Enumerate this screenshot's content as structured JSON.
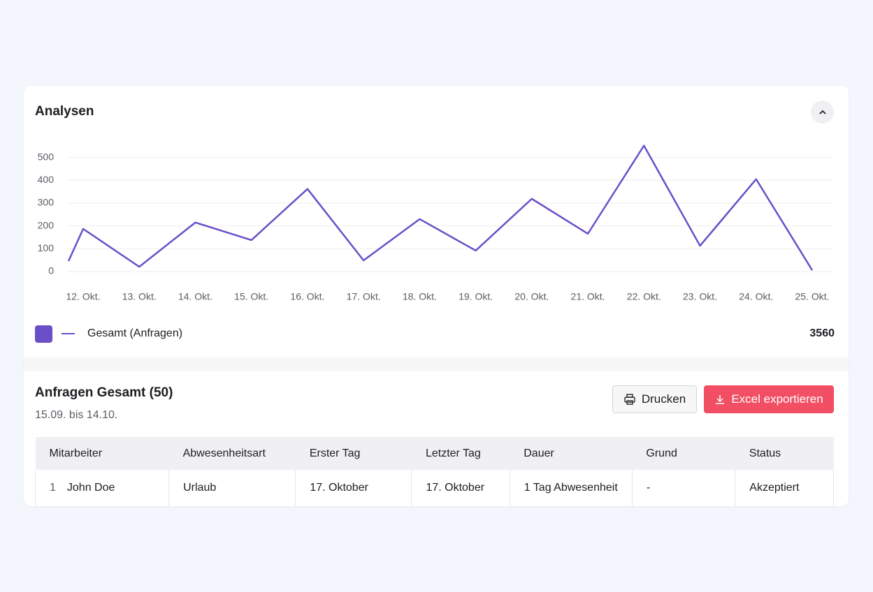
{
  "analytics": {
    "title": "Analysen",
    "chart": {
      "type": "line",
      "categories": [
        null,
        "12. Okt.",
        "13. Okt.",
        "14. Okt.",
        "15. Okt.",
        "16. Okt.",
        "17. Okt.",
        "18. Okt.",
        "19. Okt.",
        "20. Okt.",
        "21. Okt.",
        "22. Okt.",
        "23. Okt.",
        "24. Okt.",
        "25. Okt."
      ],
      "series": [
        {
          "name": "Gesamt (Anfragen)",
          "color": "#6a4fc9",
          "values": [
            46,
            187,
            21,
            215,
            138,
            362,
            49,
            230,
            92,
            319,
            166,
            552,
            113,
            405,
            6
          ]
        }
      ],
      "ylim": [
        0,
        560
      ],
      "yticks": [
        0,
        100,
        200,
        300,
        400,
        500
      ],
      "grid": true
    },
    "total": "3560"
  },
  "requests": {
    "title": "Anfragen Gesamt (50)",
    "range": "15.09. bis 14.10.",
    "buttons": [
      "Drucken",
      "Excel exportieren"
    ],
    "table": {
      "headers": [
        "Mitarbeiter",
        "Abwesenheitsart",
        "Erster Tag",
        "Letzter Tag",
        "Dauer",
        "Grund",
        "Status"
      ],
      "rows": [
        {
          "index": "1",
          "cells": [
            "John Doe",
            "Urlaub",
            "17. Oktober",
            "17. Oktober",
            "1 Tag Abwesenheit",
            "-",
            "Akzeptiert"
          ]
        }
      ]
    }
  }
}
